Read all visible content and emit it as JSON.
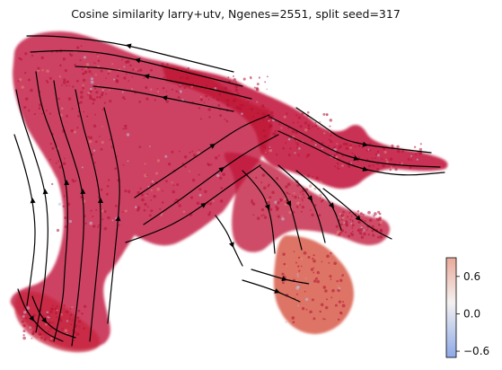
{
  "chart_data": {
    "type": "scatter",
    "title": "Cosine similarity larry+utv, Ngenes=2551, split seed=317",
    "xlabel": "",
    "ylabel": "",
    "grid": false,
    "legend": "none",
    "overlay": "velocity streamlines (black arrows)",
    "colorbar": {
      "label": "",
      "ticks": [
        0.6,
        0.0,
        -0.6
      ],
      "tick_labels": [
        "0.6",
        "0.0",
        "−0.6"
      ],
      "range": [
        -0.7,
        0.9
      ],
      "colormap": "coolwarm",
      "colors": {
        "low": "#8da9e8",
        "mid": "#f4f1f0",
        "high": "#e9a999"
      }
    },
    "point_color_dominant": "#c0143a",
    "point_color_secondary": "#d4533f"
  }
}
